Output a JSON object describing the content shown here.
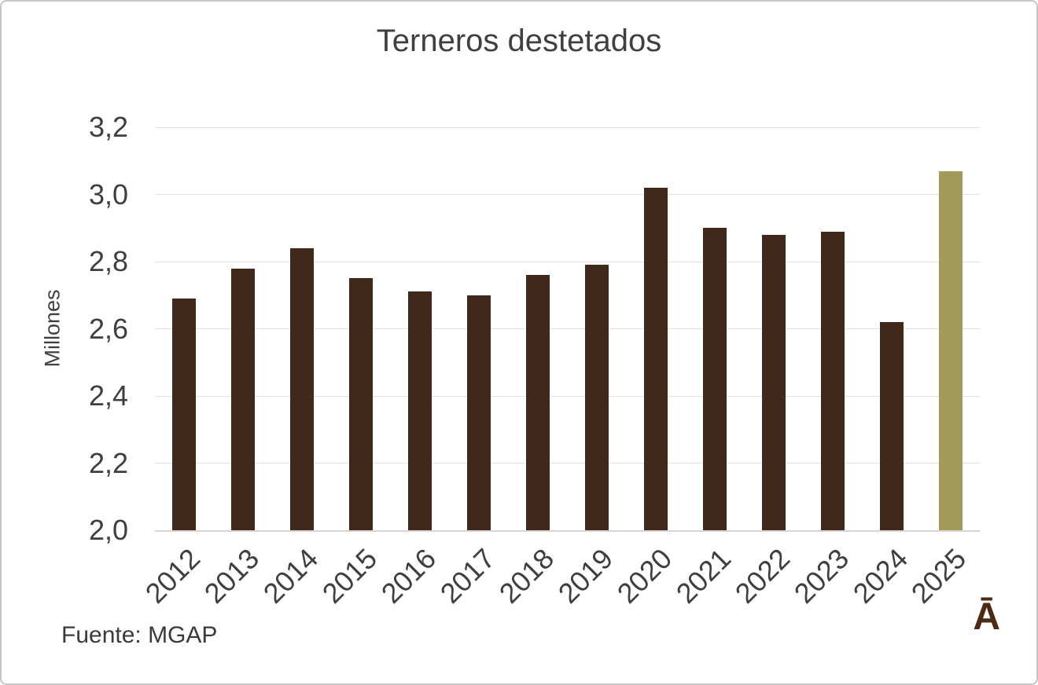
{
  "title": "Terneros destetados",
  "source": "Fuente: MGAP",
  "logo_glyph": "Ā",
  "colors": {
    "bar": "#40281a",
    "highlight_bar": "#a19a58",
    "text": "#3f3f3f",
    "gridline": "#e5e1e0",
    "axis_line": "#d9d5d4",
    "logo": "#4e2a14",
    "frame_border": "#c9c5c4"
  },
  "chart_data": {
    "type": "bar",
    "title": "Terneros destetados",
    "ylabel": "Millones",
    "xlabel": "",
    "categories": [
      "2012",
      "2013",
      "2014",
      "2015",
      "2016",
      "2017",
      "2018",
      "2019",
      "2020",
      "2021",
      "2022",
      "2023",
      "2024",
      "2025"
    ],
    "values": [
      2.69,
      2.78,
      2.84,
      2.75,
      2.71,
      2.7,
      2.76,
      2.79,
      3.02,
      2.9,
      2.88,
      2.89,
      2.62,
      3.07
    ],
    "highlight_index": 13,
    "ylim": [
      2.0,
      3.2
    ],
    "ytick_step": 0.2,
    "yticks": [
      "3,2",
      "3,0",
      "2,8",
      "2,6",
      "2,4",
      "2,2",
      "2,0"
    ],
    "grid": true,
    "legend": null,
    "source": "Fuente: MGAP"
  }
}
